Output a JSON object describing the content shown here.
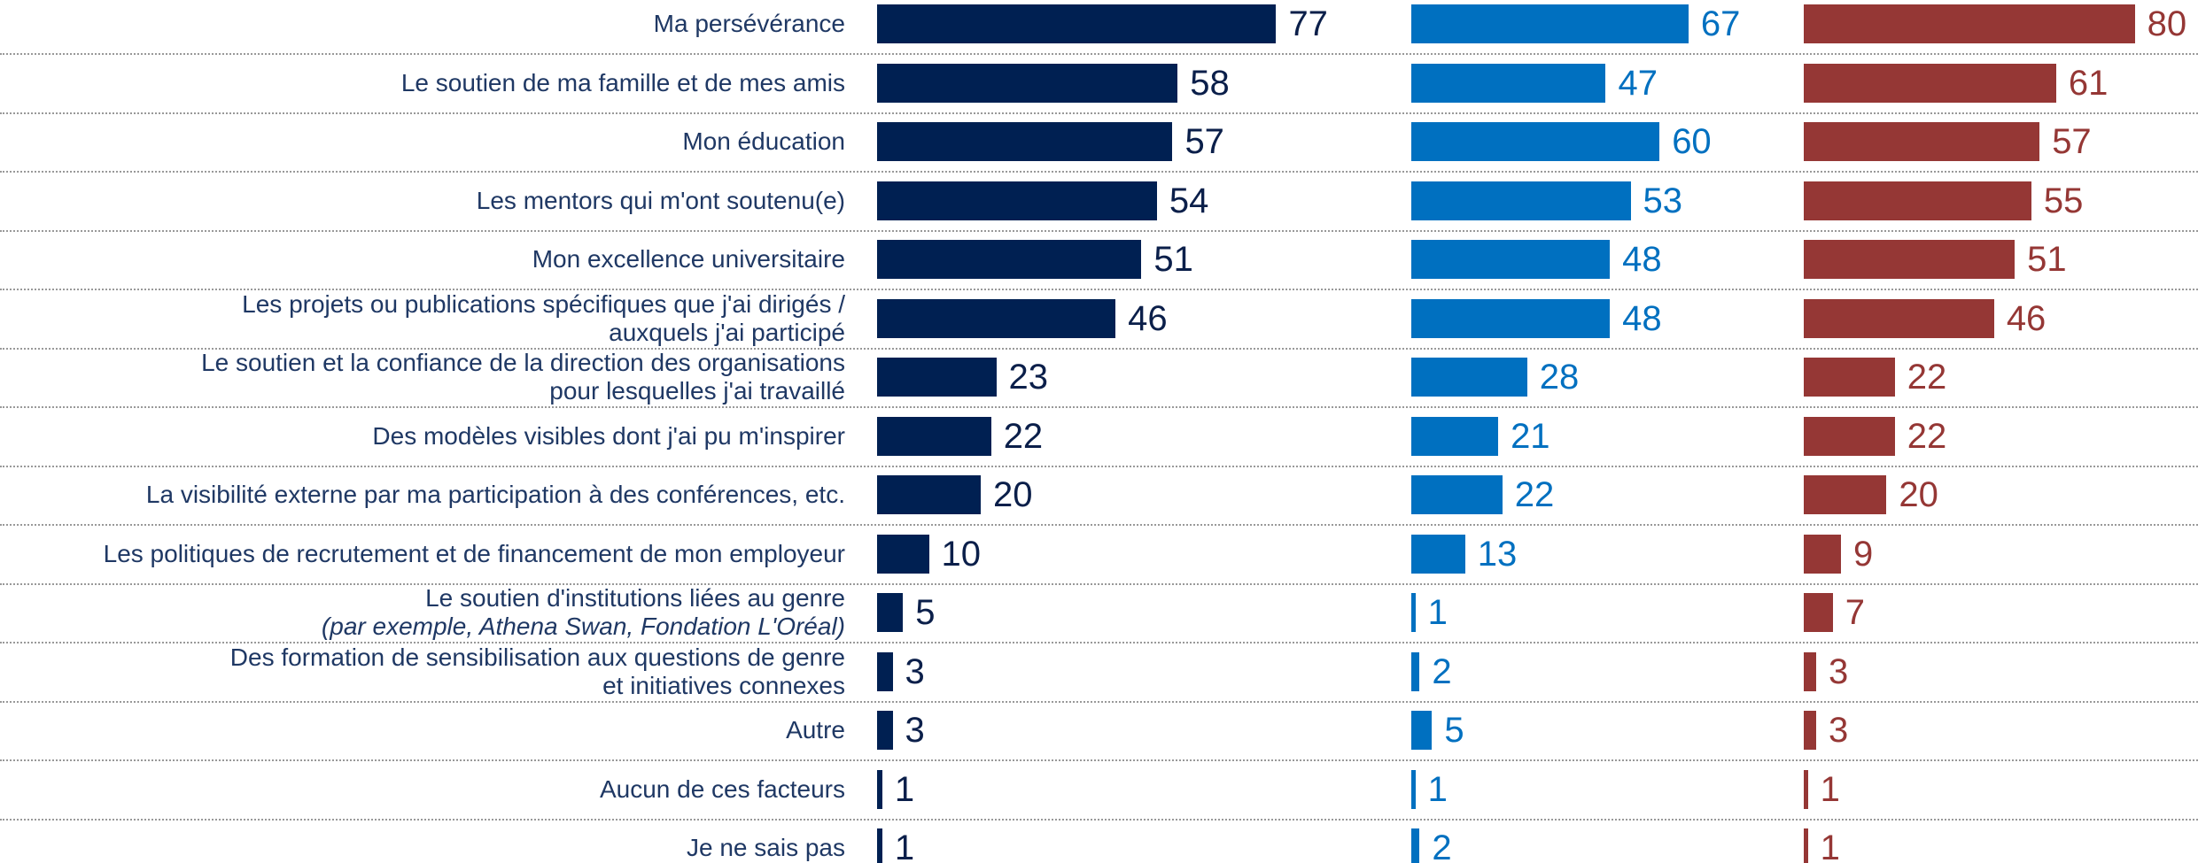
{
  "chart_data": {
    "type": "bar",
    "orientation": "horizontal",
    "categories": [
      "Ma persévérance",
      "Le soutien de ma famille et de mes amis",
      "Mon éducation",
      "Les mentors qui m'ont soutenu(e)",
      "Mon excellence universitaire",
      "Les projets ou publications spécifiques que j'ai dirigés /\nauxquels j'ai participé",
      "Le soutien et la confiance de la direction des organisations\npour lesquelles j'ai travaillé",
      "Des modèles visibles dont j'ai pu m'inspirer",
      "La visibilité externe par ma participation à des conférences, etc.",
      "Les politiques de recrutement et de financement de mon employeur",
      "Le soutien d'institutions liées au genre",
      "Des formation de sensibilisation aux questions de genre\net initiatives connexes",
      "Autre",
      "Aucun de ces facteurs",
      "Je ne sais pas"
    ],
    "category_notes": [
      null,
      null,
      null,
      null,
      null,
      null,
      null,
      null,
      null,
      null,
      "(par exemple, Athena Swan, Fondation L'Oréal)",
      null,
      null,
      null,
      null
    ],
    "xlim": [
      0,
      100
    ],
    "series": [
      {
        "color": "#002052",
        "values": [
          77,
          58,
          57,
          54,
          51,
          46,
          23,
          22,
          20,
          10,
          5,
          3,
          3,
          1,
          1
        ]
      },
      {
        "color": "#0070c0",
        "values": [
          67,
          47,
          60,
          53,
          48,
          48,
          28,
          21,
          22,
          13,
          1,
          2,
          5,
          1,
          2
        ]
      },
      {
        "color": "#953735",
        "values": [
          80,
          61,
          57,
          55,
          51,
          46,
          22,
          22,
          20,
          9,
          7,
          3,
          3,
          1,
          1
        ]
      }
    ]
  }
}
